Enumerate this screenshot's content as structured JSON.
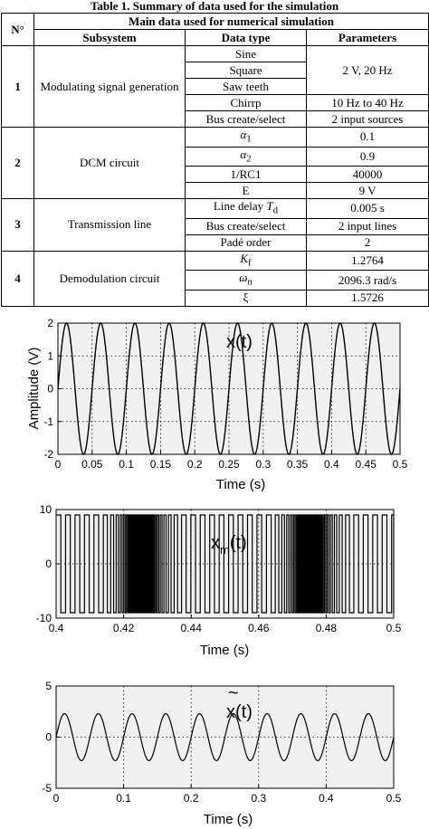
{
  "table": {
    "caption": "Table 1. Summary of data used for the simulation",
    "col_num": "N°",
    "col_main": "Main data used for numerical simulation",
    "col_subsystem": "Subsystem",
    "col_type": "Data type",
    "col_params": "Parameters",
    "rows": [
      {
        "num": "1",
        "subsystem": "Modulating signal generation"
      },
      {
        "num": "2",
        "subsystem": "DCM circuit"
      },
      {
        "num": "3",
        "subsystem": "Transmission line"
      },
      {
        "num": "4",
        "subsystem": "Demodulation circuit"
      }
    ],
    "cells": {
      "sine": "Sine",
      "square": "Square",
      "saw": "Saw teeth",
      "chirp": "Chirrp",
      "bus1": "Bus create/select",
      "amp_freq": "2 V, 20 Hz",
      "chirp_range": "10 Hz to 40 Hz",
      "sources": "2 input sources",
      "a1": "α",
      "a1_sub": "1",
      "a1_val": "0.1",
      "a2": "α",
      "a2_sub": "2",
      "a2_val": "0.9",
      "rc": "1/RC1",
      "rc_val": "40000",
      "e": "E",
      "e_val": "9 V",
      "delay": "Line delay ",
      "delay_sym": "T",
      "delay_sub": "d",
      "delay_val": "0.005 s",
      "bus2": "Bus create/select",
      "lines": "2 input lines",
      "pade": "Padé order",
      "pade_val": "2",
      "kf": "K",
      "kf_sub": "f",
      "kf_val": "1.2764",
      "wn": "ω",
      "wn_sub": "n",
      "wn_val": "2096.3 rad/s",
      "xi": "ξ",
      "xi_val": "1.5726"
    }
  },
  "chart_data": [
    {
      "type": "line",
      "signal_label": "x(t)",
      "xlabel": "Time (s)",
      "ylabel": "Amplitude (V)",
      "xlim": [
        0,
        0.5
      ],
      "ylim": [
        -2,
        2
      ],
      "xticks": [
        "0",
        "0.05",
        "0.1",
        "0.15",
        "0.2",
        "0.25",
        "0.3",
        "0.35",
        "0.4",
        "0.45",
        "0.5"
      ],
      "yticks": [
        "-2",
        "-1",
        "0",
        "1",
        "2"
      ],
      "grid": true,
      "series": [
        {
          "function": "sine",
          "amplitude": 2,
          "frequency_hz": 20,
          "color": "#000000"
        }
      ]
    },
    {
      "type": "line",
      "signal_label": "x",
      "signal_sub": "m",
      "signal_suffix": "(t)",
      "xlabel": "Time (s)",
      "ylabel": "",
      "xlim": [
        0.4,
        0.5
      ],
      "ylim": [
        -10,
        10
      ],
      "xticks": [
        "0.4",
        "0.42",
        "0.44",
        "0.46",
        "0.48",
        "0.5"
      ],
      "yticks": [
        "-10",
        "0",
        "10"
      ],
      "grid": true,
      "series": [
        {
          "function": "pulse-train",
          "amplitude": 9,
          "color": "#000000"
        }
      ]
    },
    {
      "type": "line",
      "signal_label": "x(t)",
      "signal_accent": "~",
      "xlabel": "Time (s)",
      "ylabel": "",
      "xlim": [
        0,
        0.5
      ],
      "ylim": [
        -5,
        5
      ],
      "xticks": [
        "0",
        "0.1",
        "0.2",
        "0.3",
        "0.4",
        "0.5"
      ],
      "yticks": [
        "-5",
        "0",
        "5"
      ],
      "grid": true,
      "series": [
        {
          "function": "sine",
          "amplitude": 2.3,
          "frequency_hz": 20,
          "color": "#000000"
        }
      ]
    }
  ]
}
